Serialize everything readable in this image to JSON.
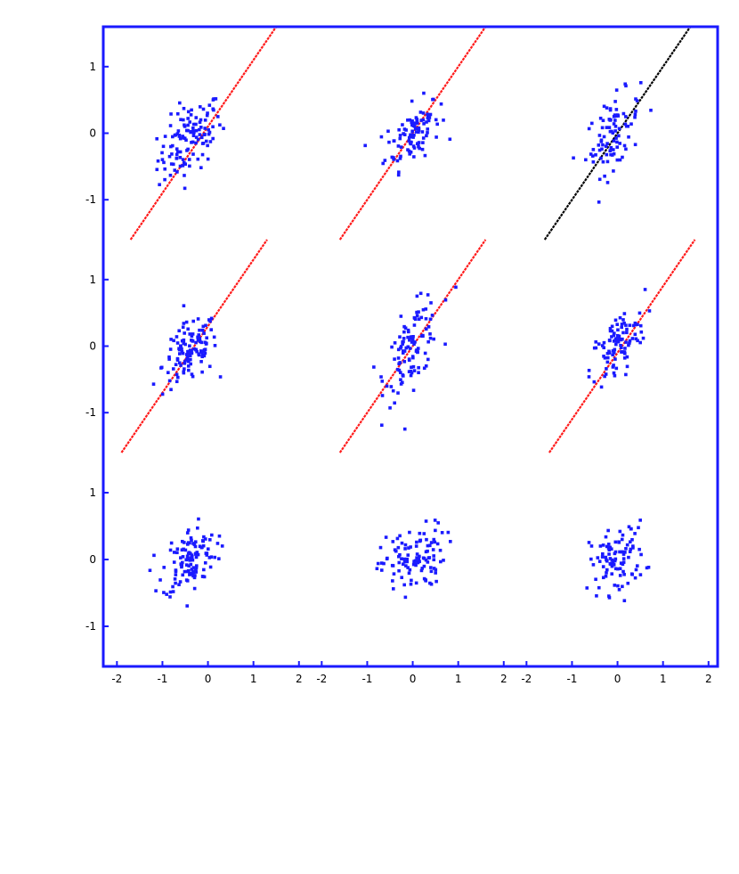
{
  "chart_data": {
    "type": "scatter",
    "title": "",
    "xlabel": "",
    "ylabel": "",
    "xlim": [
      -2.3,
      2.2
    ],
    "ylim": [
      -1.6,
      1.6
    ],
    "x_ticks": [
      -2,
      -1,
      0,
      1,
      2
    ],
    "y_ticks": [
      -1,
      0,
      1
    ],
    "x_tick_labels": [
      "-2",
      "-1",
      "0",
      "1",
      "2"
    ],
    "y_tick_labels": [
      "-1",
      "0",
      "1"
    ],
    "grid": false,
    "legend": "none",
    "colors": {
      "frame": "#1a1aff",
      "points": "#1a1aff",
      "fit_line": "#ff1a1a",
      "reference_line": "#000000"
    },
    "row_labels": [
      "",
      "",
      ""
    ],
    "column_labels": [
      "",
      "",
      ""
    ],
    "panels": [
      {
        "row": 0,
        "col": 0,
        "center": [
          -0.4,
          -0.1
        ],
        "spread": [
          0.35,
          0.3
        ],
        "corr": 0.5,
        "count": 120,
        "line": {
          "color": "red",
          "slope": 1,
          "intercept": 0.1
        }
      },
      {
        "row": 0,
        "col": 1,
        "center": [
          0.0,
          0.0
        ],
        "spread": [
          0.3,
          0.25
        ],
        "corr": 0.5,
        "count": 100,
        "line": {
          "color": "red",
          "slope": 1,
          "intercept": 0.0
        }
      },
      {
        "row": 0,
        "col": 2,
        "center": [
          -0.1,
          0.0
        ],
        "spread": [
          0.3,
          0.3
        ],
        "corr": 0.5,
        "count": 90,
        "line": {
          "color": "black",
          "slope": 1,
          "intercept": 0.0
        }
      },
      {
        "row": 1,
        "col": 0,
        "center": [
          -0.4,
          -0.1
        ],
        "spread": [
          0.3,
          0.25
        ],
        "corr": 0.4,
        "count": 120,
        "line": {
          "color": "red",
          "slope": 1,
          "intercept": 0.3
        }
      },
      {
        "row": 1,
        "col": 1,
        "center": [
          0.0,
          0.0
        ],
        "spread": [
          0.3,
          0.35
        ],
        "corr": 0.6,
        "count": 110,
        "line": {
          "color": "red",
          "slope": 1,
          "intercept": 0.0
        }
      },
      {
        "row": 1,
        "col": 2,
        "center": [
          0.0,
          0.0
        ],
        "spread": [
          0.3,
          0.3
        ],
        "corr": 0.6,
        "count": 100,
        "line": {
          "color": "red",
          "slope": 1,
          "intercept": -0.1
        }
      },
      {
        "row": 2,
        "col": 0,
        "center": [
          -0.4,
          0.0
        ],
        "spread": [
          0.3,
          0.25
        ],
        "corr": 0.3,
        "count": 120,
        "line": null
      },
      {
        "row": 2,
        "col": 1,
        "center": [
          0.0,
          0.0
        ],
        "spread": [
          0.35,
          0.25
        ],
        "corr": 0.3,
        "count": 110,
        "line": null
      },
      {
        "row": 2,
        "col": 2,
        "center": [
          0.0,
          0.0
        ],
        "spread": [
          0.3,
          0.25
        ],
        "corr": 0.2,
        "count": 100,
        "line": null
      }
    ]
  }
}
